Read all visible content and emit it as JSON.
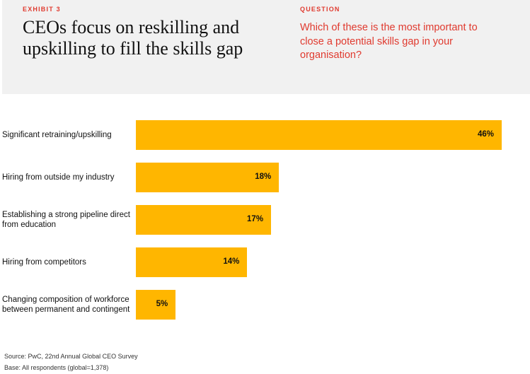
{
  "header": {
    "exhibit": "EXHIBIT 3",
    "title": "CEOs focus on reskilling and upskilling to fill the skills gap",
    "question_label": "QUESTION",
    "question": "Which of these is the most important to close a potential skills gap in your organisation?"
  },
  "chart_data": {
    "type": "bar",
    "orientation": "horizontal",
    "xlim": [
      0,
      46
    ],
    "categories": [
      "Significant retraining/upskilling",
      "Hiring from outside my industry",
      "Establishing a strong pipeline direct from education",
      "Hiring from competitors",
      "Changing composition of workforce between permanent and contingent"
    ],
    "values": [
      46,
      18,
      17,
      14,
      5
    ],
    "value_labels": [
      "46%",
      "18%",
      "17%",
      "14%",
      "5%"
    ],
    "bar_color": "#ffb600"
  },
  "footer": {
    "source": "Source: PwC, 22nd Annual Global CEO Survey",
    "base": "Base: All respondents (global=1,378)"
  }
}
